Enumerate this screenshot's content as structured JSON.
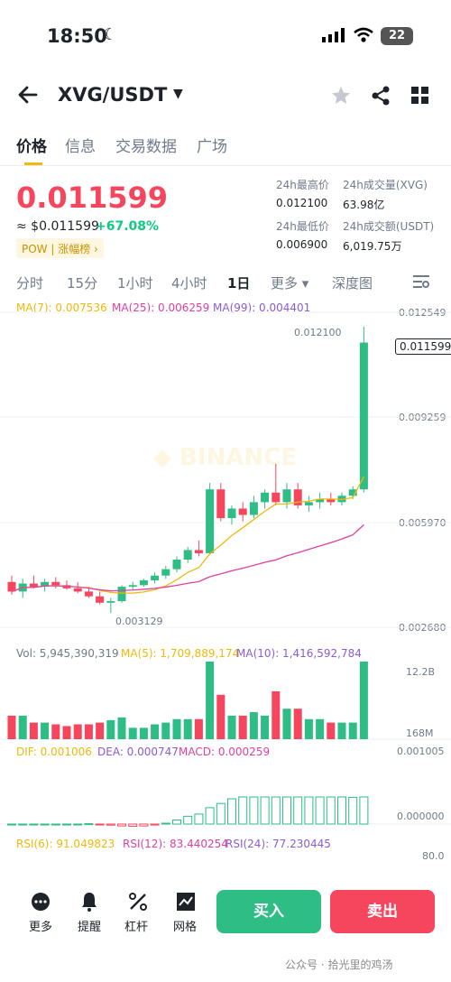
{
  "status": {
    "time": "18:50",
    "battery": "22"
  },
  "header": {
    "pair": "XVG/USDT"
  },
  "tabs": [
    "价格",
    "信息",
    "交易数据",
    "广场"
  ],
  "price": {
    "last": "0.011599",
    "usd": "≈ $0.011599",
    "change": "+67.08%",
    "tag": "POW | 涨幅榜 ›"
  },
  "stats": {
    "high_label": "24h最高价",
    "high": "0.012100",
    "low_label": "24h最低价",
    "low": "0.006900",
    "vol_label": "24h成交量(XVG)",
    "vol": "63.98亿",
    "amt_label": "24h成交额(USDT)",
    "amt": "6,019.75万"
  },
  "intervals": [
    "分时",
    "15分",
    "1小时",
    "4小时",
    "1日",
    "更多 ▾",
    "深度图"
  ],
  "ma": {
    "ma7": "MA(7): 0.007536",
    "ma25": "MA(25): 0.006259",
    "ma99": "MA(99): 0.004401"
  },
  "price_axis": [
    "0.012549",
    "0.009259",
    "0.005970",
    "0.002680"
  ],
  "high_marker": "0.012100",
  "low_marker": "0.003129",
  "current_marker": "0.011599",
  "vol": {
    "vol": "Vol: 5,945,390,319",
    "ma5": "MA(5): 1,709,889,174",
    "ma10": "MA(10): 1,416,592,784",
    "axis_top": "12.2B",
    "axis_bot": "168M"
  },
  "macd": {
    "dif": "DIF: 0.001006",
    "dea": "DEA: 0.000747",
    "macd": "MACD: 0.000259",
    "axis_top": "0.001005",
    "axis_bot": "0.000000"
  },
  "rsi": {
    "rsi6": "RSI(6): 91.049823",
    "rsi12": "RSI(12): 83.440254",
    "rsi24": "RSI(24): 77.230445",
    "axis": "80.0"
  },
  "bottom": {
    "more": "更多",
    "alert": "提醒",
    "leverage": "杠杆",
    "grid": "网格",
    "buy": "买入",
    "sell": "卖出"
  },
  "watermark": "公众号 · 拾光里的鸡汤",
  "chart_data": {
    "type": "candlestick",
    "pair": "XVG/USDT",
    "interval": "1日",
    "ylim": [
      0.00268,
      0.012549
    ],
    "candles": [
      {
        "o": 0.0041,
        "h": 0.0043,
        "l": 0.0037,
        "c": 0.0038
      },
      {
        "o": 0.0038,
        "h": 0.0042,
        "l": 0.0036,
        "c": 0.00405
      },
      {
        "o": 0.00405,
        "h": 0.0043,
        "l": 0.0039,
        "c": 0.00395
      },
      {
        "o": 0.00395,
        "h": 0.0042,
        "l": 0.0038,
        "c": 0.0041
      },
      {
        "o": 0.0041,
        "h": 0.00425,
        "l": 0.0039,
        "c": 0.004
      },
      {
        "o": 0.004,
        "h": 0.00415,
        "l": 0.00385,
        "c": 0.0039
      },
      {
        "o": 0.0039,
        "h": 0.0041,
        "l": 0.00375,
        "c": 0.0038
      },
      {
        "o": 0.0038,
        "h": 0.00395,
        "l": 0.0036,
        "c": 0.00365
      },
      {
        "o": 0.00365,
        "h": 0.0038,
        "l": 0.0034,
        "c": 0.00345
      },
      {
        "o": 0.00345,
        "h": 0.0036,
        "l": 0.00313,
        "c": 0.0035
      },
      {
        "o": 0.0035,
        "h": 0.004,
        "l": 0.00345,
        "c": 0.00395
      },
      {
        "o": 0.00395,
        "h": 0.0041,
        "l": 0.00385,
        "c": 0.004
      },
      {
        "o": 0.004,
        "h": 0.0042,
        "l": 0.00395,
        "c": 0.00415
      },
      {
        "o": 0.00415,
        "h": 0.0044,
        "l": 0.00405,
        "c": 0.0043
      },
      {
        "o": 0.0043,
        "h": 0.0046,
        "l": 0.0042,
        "c": 0.0045
      },
      {
        "o": 0.0045,
        "h": 0.0049,
        "l": 0.0044,
        "c": 0.0048
      },
      {
        "o": 0.0048,
        "h": 0.0052,
        "l": 0.0047,
        "c": 0.0051
      },
      {
        "o": 0.0051,
        "h": 0.0054,
        "l": 0.0049,
        "c": 0.005
      },
      {
        "o": 0.005,
        "h": 0.0072,
        "l": 0.00495,
        "c": 0.007
      },
      {
        "o": 0.007,
        "h": 0.0072,
        "l": 0.006,
        "c": 0.0061
      },
      {
        "o": 0.0061,
        "h": 0.0065,
        "l": 0.0059,
        "c": 0.0064
      },
      {
        "o": 0.0064,
        "h": 0.0066,
        "l": 0.006,
        "c": 0.0062
      },
      {
        "o": 0.0062,
        "h": 0.0068,
        "l": 0.0061,
        "c": 0.0066
      },
      {
        "o": 0.0066,
        "h": 0.007,
        "l": 0.0064,
        "c": 0.0069
      },
      {
        "o": 0.0069,
        "h": 0.0078,
        "l": 0.0065,
        "c": 0.0066
      },
      {
        "o": 0.0066,
        "h": 0.0072,
        "l": 0.0064,
        "c": 0.007
      },
      {
        "o": 0.007,
        "h": 0.0072,
        "l": 0.0064,
        "c": 0.0065
      },
      {
        "o": 0.0065,
        "h": 0.0068,
        "l": 0.0063,
        "c": 0.0066
      },
      {
        "o": 0.0066,
        "h": 0.0069,
        "l": 0.0064,
        "c": 0.0067
      },
      {
        "o": 0.0067,
        "h": 0.0069,
        "l": 0.0065,
        "c": 0.0066
      },
      {
        "o": 0.0066,
        "h": 0.0069,
        "l": 0.0065,
        "c": 0.0068
      },
      {
        "o": 0.0068,
        "h": 0.0071,
        "l": 0.0067,
        "c": 0.007
      },
      {
        "o": 0.007,
        "h": 0.0121,
        "l": 0.0069,
        "c": 0.0116
      }
    ]
  }
}
